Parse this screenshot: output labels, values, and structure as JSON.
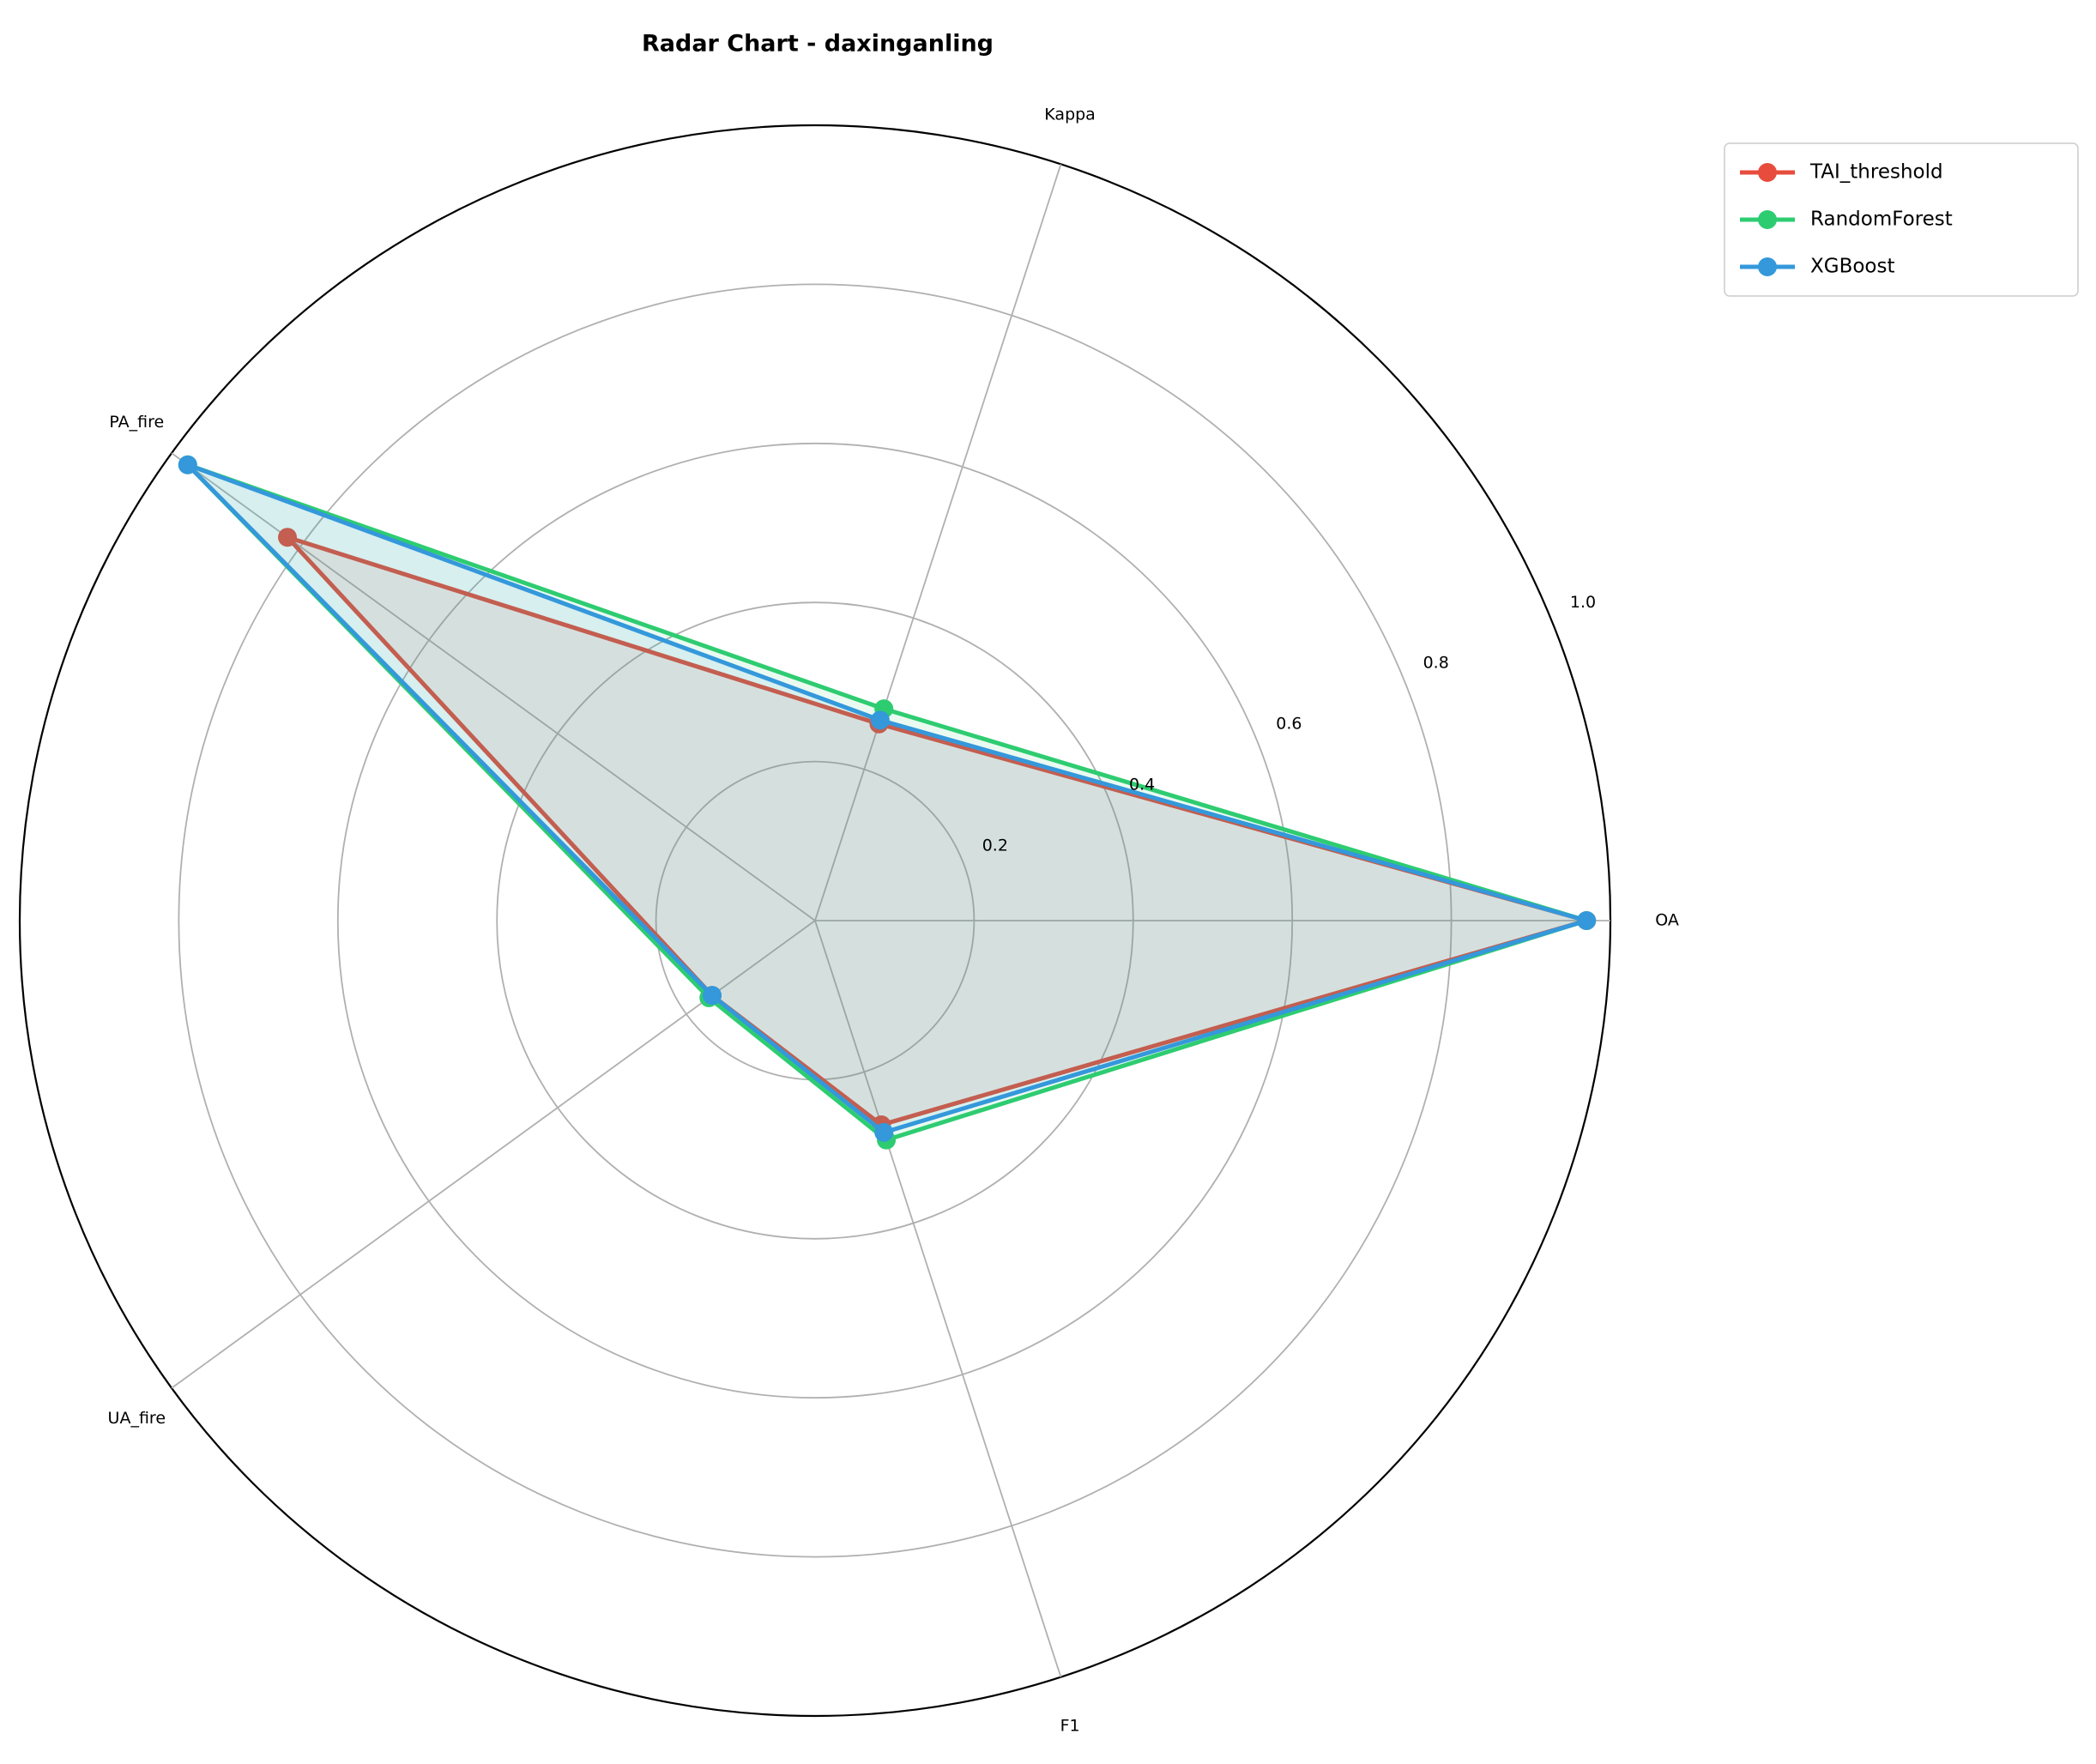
{
  "chart_data": {
    "type": "radar",
    "title": "Radar Chart - daxinganling",
    "categories": [
      "OA",
      "Kappa",
      "PA_fire",
      "UA_fire",
      "F1"
    ],
    "series": [
      {
        "name": "TAI_threshold",
        "color": "#e74c3c",
        "values": [
          0.97,
          0.26,
          0.82,
          0.16,
          0.27
        ]
      },
      {
        "name": "RandomForest",
        "color": "#2ecc71",
        "values": [
          0.97,
          0.28,
          0.975,
          0.165,
          0.29
        ]
      },
      {
        "name": "XGBoost",
        "color": "#3498db",
        "values": [
          0.97,
          0.265,
          0.975,
          0.16,
          0.28
        ]
      }
    ],
    "ylim": [
      0,
      1
    ],
    "yticks": [
      0.2,
      0.4,
      0.6,
      0.8,
      {
        "value": 1,
        "label": "1.0"
      }
    ],
    "grid": true,
    "legend": "upper right"
  }
}
